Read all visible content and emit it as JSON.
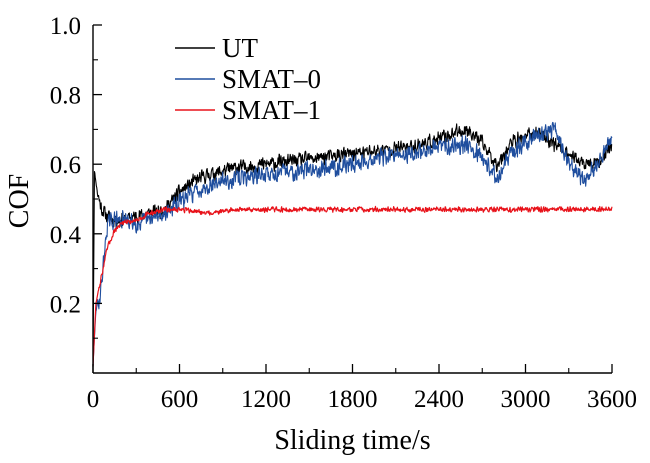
{
  "chart_data": {
    "type": "line",
    "xlabel": "Sliding time/s",
    "ylabel": "COF",
    "xlim": [
      0,
      3600
    ],
    "ylim": [
      0,
      1.0
    ],
    "xticks": [
      0,
      600,
      1200,
      1800,
      2400,
      3000,
      3600
    ],
    "xtick_labels": [
      "0",
      "600",
      "1200",
      "1800",
      "2400",
      "3000",
      "3600"
    ],
    "yticks": [
      0.2,
      0.4,
      0.6,
      0.8,
      1.0
    ],
    "ytick_labels": [
      "0.2",
      "0.4",
      "0.6",
      "0.8",
      "1.0"
    ],
    "grid": false,
    "legend_position": "top-left",
    "series": [
      {
        "name": "UT",
        "color": "#000000",
        "noise": 0.025,
        "x": [
          0,
          10,
          30,
          60,
          100,
          150,
          200,
          300,
          400,
          500,
          600,
          700,
          800,
          900,
          1000,
          1200,
          1400,
          1600,
          1800,
          2000,
          2200,
          2400,
          2500,
          2600,
          2700,
          2800,
          2900,
          3000,
          3100,
          3200,
          3300,
          3400,
          3500,
          3600
        ],
        "y": [
          0.02,
          0.58,
          0.52,
          0.47,
          0.45,
          0.44,
          0.44,
          0.45,
          0.46,
          0.47,
          0.52,
          0.55,
          0.57,
          0.58,
          0.59,
          0.6,
          0.61,
          0.62,
          0.63,
          0.64,
          0.65,
          0.67,
          0.69,
          0.7,
          0.66,
          0.6,
          0.66,
          0.68,
          0.69,
          0.66,
          0.63,
          0.6,
          0.6,
          0.66
        ]
      },
      {
        "name": "SMAT–0",
        "color": "#1f4e9e",
        "noise": 0.03,
        "x": [
          0,
          20,
          50,
          100,
          150,
          200,
          300,
          400,
          500,
          600,
          700,
          800,
          900,
          1000,
          1200,
          1400,
          1600,
          1800,
          2000,
          2200,
          2400,
          2600,
          2700,
          2800,
          2900,
          3000,
          3100,
          3200,
          3300,
          3400,
          3500,
          3600
        ],
        "y": [
          0.02,
          0.18,
          0.22,
          0.43,
          0.44,
          0.44,
          0.43,
          0.44,
          0.46,
          0.49,
          0.52,
          0.54,
          0.55,
          0.56,
          0.57,
          0.58,
          0.59,
          0.6,
          0.62,
          0.63,
          0.65,
          0.66,
          0.62,
          0.56,
          0.63,
          0.66,
          0.69,
          0.7,
          0.6,
          0.55,
          0.6,
          0.68
        ]
      },
      {
        "name": "SMAT–1",
        "color": "#e8121a",
        "noise": 0.009,
        "x": [
          0,
          20,
          60,
          100,
          150,
          200,
          300,
          400,
          500,
          600,
          800,
          1000,
          1500,
          2000,
          2500,
          3000,
          3600
        ],
        "y": [
          0.02,
          0.2,
          0.28,
          0.36,
          0.41,
          0.43,
          0.44,
          0.46,
          0.47,
          0.47,
          0.46,
          0.47,
          0.47,
          0.47,
          0.47,
          0.47,
          0.47
        ]
      }
    ]
  }
}
